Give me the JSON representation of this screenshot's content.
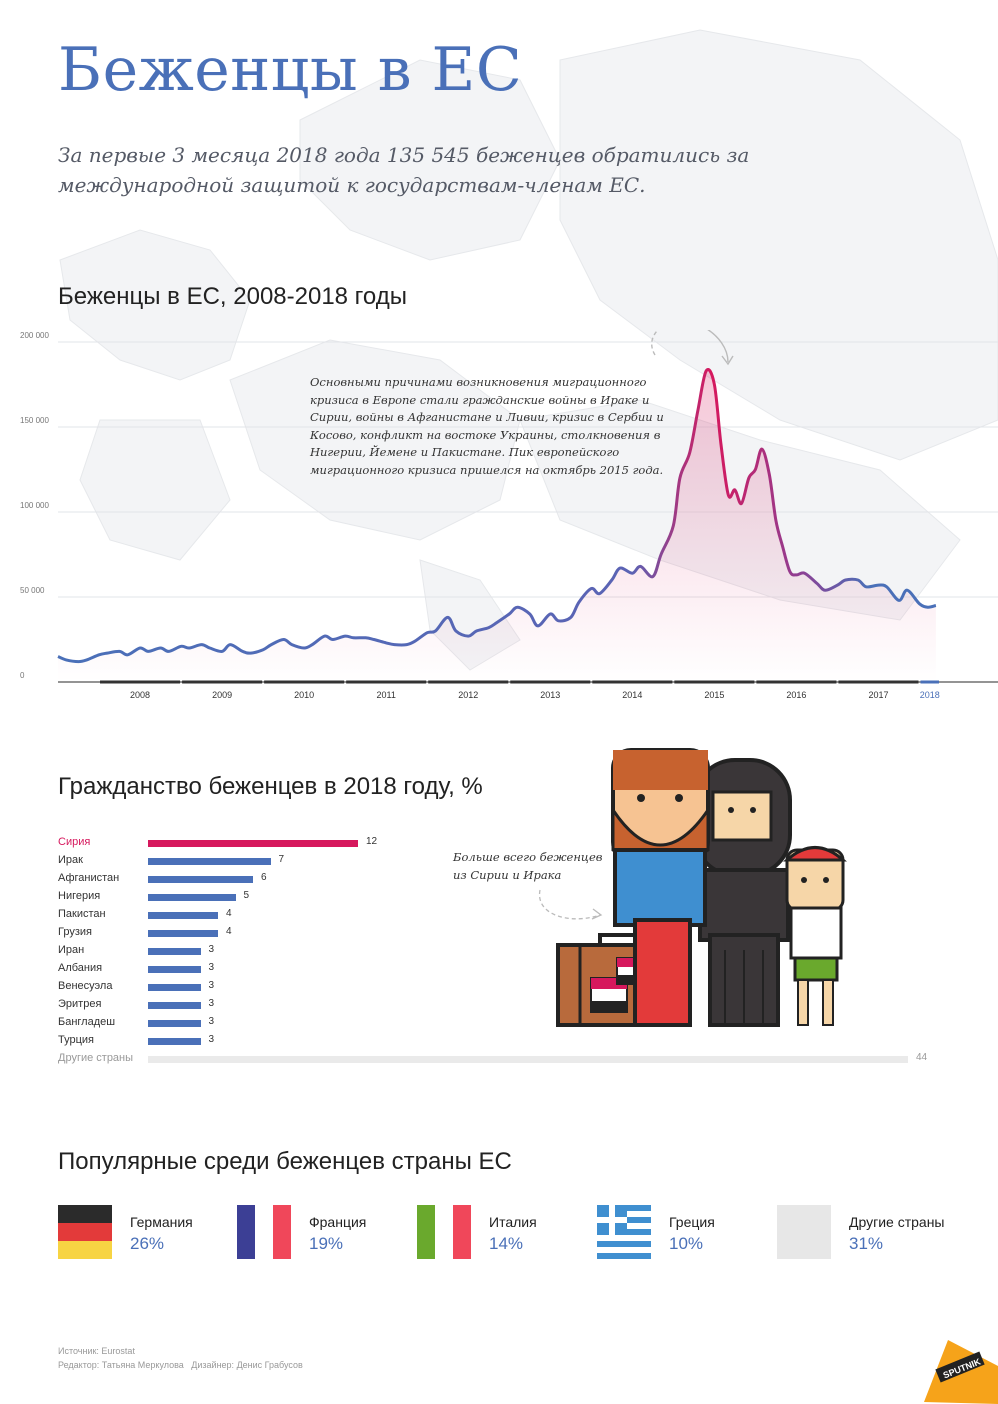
{
  "header": {
    "title": "Беженцы в ЕС",
    "subtitle": "За первые 3 месяца 2018 года 135 545 беженцев обратились за международной защитой к государствам-членам ЕС."
  },
  "line_section": {
    "title": "Беженцы в ЕС, 2008-2018 годы",
    "annotation": "Основными причинами возникновения миграционного кризиса в Европе стали гражданские войны в Ираке и Сирии, войны в Афганистане и Ливии, кризис в Сербии и Косово, конфликт на востоке Украины, столкновения в Нигерии, Йемене и Пакистане. Пик европейского миграционного кризиса пришелся на октябрь 2015 года."
  },
  "citizenship_section": {
    "title": "Гражданство беженцев в 2018 году, %",
    "note": "Больше всего беженцев из Сирии и Ирака"
  },
  "countries_section": {
    "title": "Популярные среди беженцев страны ЕС",
    "items": [
      {
        "name": "Германия",
        "pct": "26%",
        "flag": "germany-flag"
      },
      {
        "name": "Франция",
        "pct": "19%",
        "flag": "france-flag"
      },
      {
        "name": "Италия",
        "pct": "14%",
        "flag": "italy-flag"
      },
      {
        "name": "Греция",
        "pct": "10%",
        "flag": "greece-flag"
      },
      {
        "name": "Другие страны",
        "pct": "31%",
        "flag": "other-square"
      }
    ]
  },
  "footer": {
    "source": "Источник: Eurostat",
    "credits": "Редактор: Татьяна Меркулова   Дизайнер: Денис Грабусов",
    "logo": "SPUTNIK"
  },
  "colors": {
    "accent": "#4a70b8",
    "highlight": "#d6185d",
    "line_start": "#4a70b8",
    "line_peak": "#d6185d",
    "other_bar": "#eaeaea"
  },
  "chart_data": [
    {
      "type": "line",
      "title": "Беженцы в ЕС, 2008-2018 годы",
      "x_ticks": [
        "2008",
        "2009",
        "2010",
        "2011",
        "2012",
        "2013",
        "2014",
        "2015",
        "2016",
        "2017",
        "2018"
      ],
      "y_ticks": [
        "0",
        "50 000",
        "100 000",
        "150 000",
        "200 000"
      ],
      "ylim": [
        0,
        200000
      ],
      "xlim": [
        2007.5,
        2018.25
      ],
      "grid": true,
      "series": [
        {
          "x": [
            2007.5,
            2007.6,
            2007.75,
            2007.85,
            2008.0,
            2008.1,
            2008.25,
            2008.35,
            2008.5,
            2008.6,
            2008.75,
            2008.85,
            2009.0,
            2009.1,
            2009.25,
            2009.35,
            2009.5,
            2009.6,
            2009.75,
            2009.85,
            2010.0,
            2010.1,
            2010.25,
            2010.35,
            2010.5,
            2010.6,
            2010.75,
            2010.85,
            2011.0,
            2011.1,
            2011.25,
            2011.35,
            2011.5,
            2011.6,
            2011.75,
            2011.85,
            2012.0,
            2012.1,
            2012.25,
            2012.35,
            2012.5,
            2012.6,
            2012.75,
            2012.85,
            2013.0,
            2013.1,
            2013.25,
            2013.35,
            2013.5,
            2013.6,
            2013.75,
            2013.85,
            2014.0,
            2014.1,
            2014.25,
            2014.35,
            2014.5,
            2014.6,
            2014.75,
            2014.85,
            2015.0,
            2015.08,
            2015.2,
            2015.3,
            2015.4,
            2015.5,
            2015.58,
            2015.67,
            2015.75,
            2015.83,
            2015.92,
            2016.0,
            2016.08,
            2016.17,
            2016.25,
            2016.33,
            2016.42,
            2016.5,
            2016.6,
            2016.75,
            2016.85,
            2017.0,
            2017.1,
            2017.25,
            2017.35,
            2017.5,
            2017.6,
            2017.75,
            2017.85,
            2018.0,
            2018.1,
            2018.2
          ],
          "y": [
            15000,
            13000,
            12000,
            13000,
            16000,
            17000,
            18000,
            16000,
            20000,
            18000,
            20000,
            18000,
            21000,
            20000,
            22000,
            20000,
            18000,
            22000,
            18000,
            17000,
            19000,
            22000,
            25000,
            22000,
            20000,
            22000,
            27000,
            25000,
            27000,
            26000,
            26000,
            25000,
            23000,
            22000,
            22000,
            24000,
            29000,
            30000,
            38000,
            30000,
            27000,
            30000,
            32000,
            35000,
            40000,
            44000,
            40000,
            33000,
            40000,
            36000,
            38000,
            47000,
            55000,
            52000,
            60000,
            67000,
            64000,
            68000,
            62000,
            75000,
            92000,
            120000,
            135000,
            160000,
            183000,
            175000,
            140000,
            110000,
            113000,
            105000,
            120000,
            125000,
            137000,
            122000,
            95000,
            80000,
            65000,
            63000,
            64000,
            58000,
            54000,
            57000,
            60000,
            60000,
            56000,
            57000,
            56000,
            48000,
            54000,
            46000,
            44000,
            45000
          ]
        }
      ]
    },
    {
      "type": "bar",
      "orientation": "horizontal",
      "title": "Гражданство беженцев в 2018 году, %",
      "categories": [
        "Сирия",
        "Ирак",
        "Афганистан",
        "Нигерия",
        "Пакистан",
        "Грузия",
        "Иран",
        "Албания",
        "Венесуэла",
        "Эритрея",
        "Бангладеш",
        "Турция",
        "Другие страны"
      ],
      "values": [
        12,
        7,
        6,
        5,
        4,
        4,
        3,
        3,
        3,
        3,
        3,
        3,
        44
      ]
    }
  ]
}
